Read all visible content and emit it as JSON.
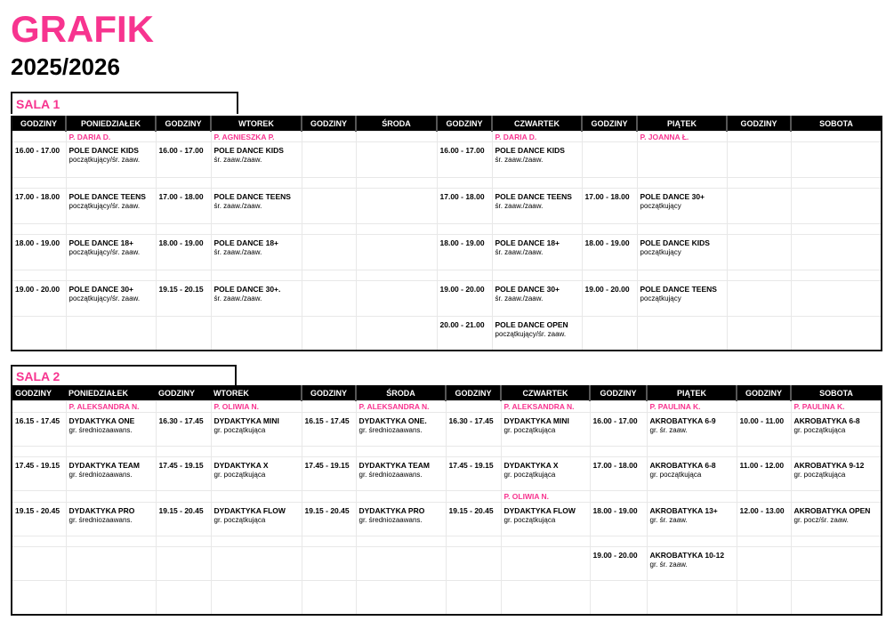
{
  "title": "GRAFIK",
  "subtitle": "2025/2026",
  "colors": {
    "accent": "#f7348f",
    "header_bg": "#000000"
  },
  "rooms": [
    {
      "name": "SALA 1",
      "headers": [
        "GODZINY",
        "PONIEDZIAŁEK",
        "GODZINY",
        "WTOREK",
        "GODZINY",
        "ŚRODA",
        "GODZINY",
        "CZWARTEK",
        "GODZINY",
        "PIĄTEK",
        "GODZINY",
        "SOBOTA"
      ],
      "rows": [
        {
          "type": "teacher",
          "teachers": [
            "P. DARIA D.",
            "P. AGNIESZKA P.",
            "",
            "P. DARIA D.",
            "P. JOANNA Ł.",
            ""
          ]
        },
        {
          "type": "event",
          "days": [
            {
              "time": "16.00 - 17.00",
              "title": "POLE DANCE KIDS",
              "level": "początkujący/śr. zaaw."
            },
            {
              "time": "16.00 - 17.00",
              "title": "POLE DANCE KIDS",
              "level": "śr. zaaw./zaaw."
            },
            {},
            {
              "time": "16.00 - 17.00",
              "title": "POLE DANCE KIDS",
              "level": "śr. zaaw./zaaw."
            },
            {},
            {}
          ]
        },
        {
          "type": "spacer"
        },
        {
          "type": "event",
          "days": [
            {
              "time": "17.00 - 18.00",
              "title": "POLE DANCE TEENS",
              "level": "początkujący/śr. zaaw."
            },
            {
              "time": "17.00 - 18.00",
              "title": "POLE DANCE TEENS",
              "level": "śr. zaaw./zaaw."
            },
            {},
            {
              "time": "17.00 - 18.00",
              "title": "POLE DANCE TEENS",
              "level": "śr. zaaw./zaaw."
            },
            {
              "time": "17.00 - 18.00",
              "title": "POLE DANCE 30+",
              "level": "początkujący"
            },
            {}
          ]
        },
        {
          "type": "spacer"
        },
        {
          "type": "event",
          "days": [
            {
              "time": "18.00 - 19.00",
              "title": "POLE DANCE 18+",
              "level": "początkujący/śr. zaaw."
            },
            {
              "time": "18.00 - 19.00",
              "title": "POLE DANCE 18+",
              "level": "śr. zaaw./zaaw."
            },
            {},
            {
              "time": "18.00 - 19.00",
              "title": "POLE DANCE 18+",
              "level": "śr. zaaw./zaaw."
            },
            {
              "time": "18.00 - 19.00",
              "title": "POLE DANCE KIDS",
              "level": "początkujący"
            },
            {}
          ]
        },
        {
          "type": "spacer"
        },
        {
          "type": "event",
          "days": [
            {
              "time": "19.00 - 20.00",
              "title": "POLE DANCE 30+",
              "level": "początkujący/śr. zaaw."
            },
            {
              "time": "19.15 - 20.15",
              "title": "POLE DANCE 30+.",
              "level": "śr. zaaw./zaaw."
            },
            {},
            {
              "time": "19.00 - 20.00",
              "title": "POLE DANCE 30+",
              "level": "śr. zaaw./zaaw."
            },
            {
              "time": "19.00 - 20.00",
              "title": "POLE DANCE TEENS",
              "level": "początkujący"
            },
            {}
          ]
        },
        {
          "type": "event",
          "days": [
            {},
            {},
            {},
            {
              "time": "20.00 - 21.00",
              "title": "POLE DANCE OPEN",
              "level": "początkujący/śr. zaaw."
            },
            {},
            {}
          ]
        }
      ]
    },
    {
      "name": "SALA 2",
      "headers": [
        "GODZINY",
        "PONIEDZIAŁEK",
        "GODZINY",
        "WTOREK",
        "GODZINY",
        "ŚRODA",
        "GODZINY",
        "CZWARTEK",
        "GODZINY",
        "PIĄTEK",
        "GODZINY",
        "SOBOTA"
      ],
      "rows": [
        {
          "type": "teacher",
          "teachers": [
            "P. ALEKSANDRA N.",
            "P. OLIWIA N.",
            "P. ALEKSANDRA N.",
            "P. ALEKSANDRA N.",
            "P. PAULINA K.",
            "P. PAULINA K."
          ]
        },
        {
          "type": "event",
          "days": [
            {
              "time": "16.15 - 17.45",
              "title": "DYDAKTYKA ONE",
              "level": "gr. średniozaawans."
            },
            {
              "time": "16.30 - 17.45",
              "title": "DYDAKTYKA MINI",
              "level": "gr. początkująca"
            },
            {
              "time": "16.15 - 17.45",
              "title": "DYDAKTYKA ONE.",
              "level": "gr. średniozaawans."
            },
            {
              "time": "16.30 - 17.45",
              "title": "DYDAKTYKA MINI",
              "level": "gr. początkująca"
            },
            {
              "time": "16.00 - 17.00",
              "title": "AKROBATYKA 6-9",
              "level": "gr. śr. zaaw."
            },
            {
              "time": "10.00 - 11.00",
              "title": "AKROBATYKA 6-8",
              "level": "gr. początkująca"
            }
          ]
        },
        {
          "type": "spacer"
        },
        {
          "type": "event",
          "days": [
            {
              "time": "17.45 - 19.15",
              "title": "DYDAKTYKA TEAM",
              "level": "gr. średniozaawans."
            },
            {
              "time": "17.45 - 19.15",
              "title": "DYDAKTYKA X",
              "level": "gr. początkująca"
            },
            {
              "time": "17.45 - 19.15",
              "title": "DYDAKTYKA TEAM",
              "level": "gr. średniozaawans."
            },
            {
              "time": "17.45 - 19.15",
              "title": "DYDAKTYKA X",
              "level": "gr. początkująca"
            },
            {
              "time": "17.00 - 18.00",
              "title": "AKROBATYKA 6-8",
              "level": "gr. początkująca"
            },
            {
              "time": "11.00 - 12.00",
              "title": "AKROBATYKA 9-12",
              "level": "gr. początkująca"
            }
          ]
        },
        {
          "type": "teacher",
          "teachers": [
            "",
            "",
            "",
            "P. OLIWIA N.",
            "",
            ""
          ]
        },
        {
          "type": "event",
          "days": [
            {
              "time": "19.15 - 20.45",
              "title": "DYDAKTYKA PRO",
              "level": "gr. średniozaawans."
            },
            {
              "time": "19.15 - 20.45",
              "title": "DYDAKTYKA FLOW",
              "level": "gr. początkująca"
            },
            {
              "time": "19.15 - 20.45",
              "title": "DYDAKTYKA PRO",
              "level": "gr. średniozaawans."
            },
            {
              "time": "19.15 - 20.45",
              "title": "DYDAKTYKA FLOW",
              "level": "gr. początkująca"
            },
            {
              "time": "18.00 - 19.00",
              "title": "AKROBATYKA 13+",
              "level": "gr. śr. zaaw."
            },
            {
              "time": "12.00 - 13.00",
              "title": "AKROBATYKA OPEN",
              "level": "gr. pocz/śr. zaaw."
            }
          ]
        },
        {
          "type": "spacer"
        },
        {
          "type": "event",
          "days": [
            {},
            {},
            {},
            {},
            {
              "time": "19.00 - 20.00",
              "title": "AKROBATYKA 10-12",
              "level": "gr. śr. zaaw."
            },
            {}
          ]
        },
        {
          "type": "event",
          "days": [
            {},
            {},
            {},
            {},
            {},
            {}
          ]
        }
      ]
    }
  ]
}
